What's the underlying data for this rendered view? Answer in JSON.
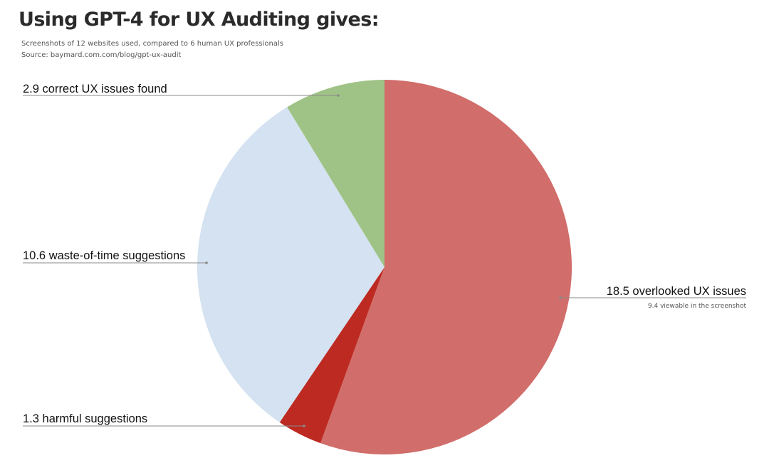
{
  "header": {
    "title": "Using GPT-4 for UX Auditing gives:",
    "subtitle": "Screenshots of 12 websites used, compared to 6 human UX professionals",
    "source": "Source: baymard.com.com/blog/gpt-ux-audit"
  },
  "chart_data": {
    "type": "pie",
    "title": "Using GPT-4 for UX Auditing gives:",
    "start_angle_deg": 0,
    "direction": "clockwise",
    "legend": "none",
    "slices": [
      {
        "value": 18.5,
        "label": "18.5 overlooked UX issues",
        "note": "9.4 viewable in the screenshot",
        "color": "#d16d6a"
      },
      {
        "value": 1.3,
        "label": "1.3 harmful suggestions",
        "note": "",
        "color": "#bd2a22"
      },
      {
        "value": 10.6,
        "label": "10.6 waste-of-time suggestions",
        "note": "",
        "color": "#d4e2f1"
      },
      {
        "value": 2.9,
        "label": "2.9 correct UX issues found",
        "note": "",
        "color": "#9fc386"
      }
    ]
  }
}
